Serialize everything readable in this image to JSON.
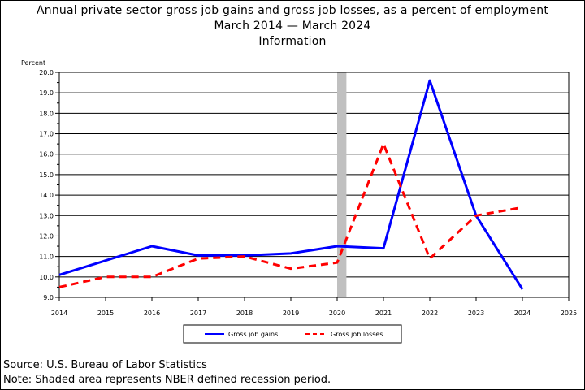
{
  "chart_data": {
    "type": "line",
    "title_lines": [
      "Annual private sector gross job gains and gross job losses, as a percent of employment",
      "March 2014 — March 2024",
      "Information"
    ],
    "ylabel": "Percent",
    "xlabel": "",
    "ylim": [
      9.0,
      20.0
    ],
    "yticks": [
      "9.0",
      "10.0",
      "11.0",
      "12.0",
      "13.0",
      "14.0",
      "15.0",
      "16.0",
      "17.0",
      "18.0",
      "19.0",
      "20.0"
    ],
    "xlim": [
      2014,
      2025
    ],
    "xticks": [
      "2014",
      "2015",
      "2016",
      "2017",
      "2018",
      "2019",
      "2020",
      "2021",
      "2022",
      "2023",
      "2024",
      "2025"
    ],
    "grid": "horizontal",
    "legend_position": "bottom",
    "recession_shading": {
      "start": 2020.0,
      "end": 2020.2,
      "color": "#c0c0c0"
    },
    "series": [
      {
        "name": "Gross job gains",
        "color": "#0000ff",
        "style": "solid",
        "x": [
          2014,
          2016,
          2017,
          2018,
          2019,
          2020,
          2021,
          2022,
          2023,
          2024
        ],
        "values": [
          10.1,
          11.5,
          11.05,
          11.05,
          11.15,
          11.5,
          11.4,
          19.6,
          13.0,
          9.4
        ]
      },
      {
        "name": "Gross job losses",
        "color": "#ff0000",
        "style": "dashed",
        "x": [
          2014,
          2015,
          2016,
          2017,
          2018,
          2019,
          2020,
          2021,
          2022,
          2023,
          2024
        ],
        "values": [
          9.5,
          10.0,
          10.0,
          10.9,
          11.0,
          10.4,
          10.7,
          16.5,
          10.9,
          13.0,
          13.4
        ]
      }
    ]
  },
  "footer": {
    "source": "Source: U.S. Bureau of Labor Statistics",
    "note": "Note: Shaded area represents NBER defined recession period."
  }
}
